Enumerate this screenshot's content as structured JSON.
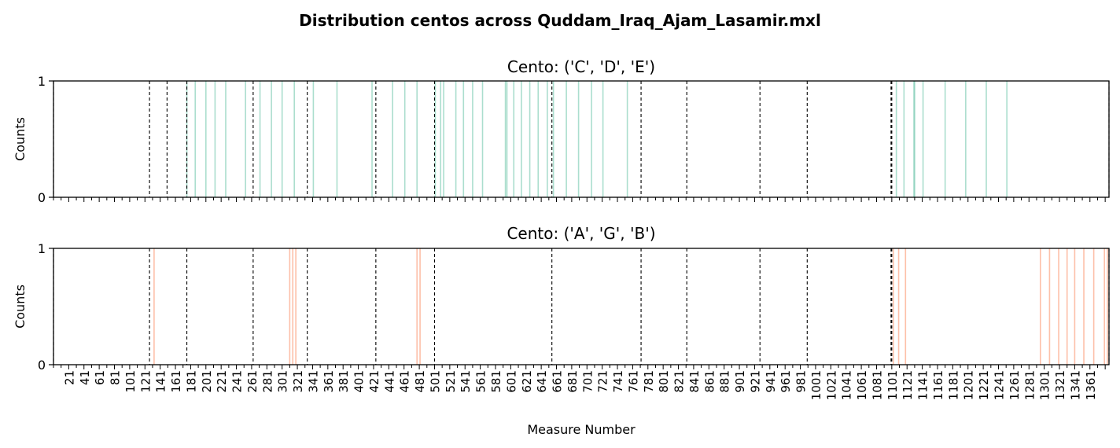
{
  "figure": {
    "title": "Distribution centos across Quddam_Iraq_Ajam_Lasamir.mxl",
    "xlabel": "Measure Number"
  },
  "chart_data": [
    {
      "type": "bar",
      "title": "Cento: ('C', 'D', 'E')",
      "ylabel": "Counts",
      "xlim": [
        1,
        1386
      ],
      "ylim": [
        0,
        1
      ],
      "yticks": [
        0,
        1
      ],
      "color": "#66c2a5",
      "bar_value": 1,
      "measures_with_count": [
        176,
        187,
        201,
        213,
        227,
        253,
        272,
        287,
        301,
        317,
        342,
        373,
        419,
        446,
        462,
        478,
        502,
        509,
        513,
        529,
        539,
        551,
        564,
        594,
        596,
        605,
        615,
        626,
        637,
        649,
        657,
        674,
        690,
        707,
        722,
        754,
        1107,
        1117,
        1130,
        1131,
        1142,
        1171,
        1198,
        1225,
        1252
      ],
      "section_boundaries": [
        1,
        127,
        150,
        176,
        263,
        334,
        424,
        501,
        655,
        772,
        832,
        928,
        990,
        1100,
        1101,
        1386
      ]
    },
    {
      "type": "bar",
      "title": "Cento: ('A', 'G', 'B')",
      "ylabel": "Counts",
      "xlim": [
        1,
        1386
      ],
      "ylim": [
        0,
        1
      ],
      "yticks": [
        0,
        1
      ],
      "color": "#fc8d62",
      "bar_value": 1,
      "measures_with_count": [
        133,
        311,
        315,
        319,
        478,
        482,
        1103,
        1110,
        1119,
        1296,
        1308,
        1320,
        1331,
        1341,
        1353,
        1366,
        1380,
        1384
      ],
      "section_boundaries": [
        1,
        127,
        176,
        263,
        334,
        424,
        501,
        655,
        772,
        832,
        928,
        990,
        1100,
        1101,
        1386
      ]
    }
  ],
  "x_tick_labels": [
    "21",
    "41",
    "61",
    "81",
    "101",
    "121",
    "141",
    "161",
    "181",
    "201",
    "221",
    "241",
    "261",
    "281",
    "301",
    "321",
    "341",
    "361",
    "381",
    "401",
    "421",
    "441",
    "461",
    "481",
    "501",
    "521",
    "541",
    "561",
    "581",
    "601",
    "621",
    "641",
    "661",
    "681",
    "701",
    "721",
    "741",
    "761",
    "781",
    "801",
    "821",
    "841",
    "861",
    "881",
    "901",
    "921",
    "941",
    "961",
    "981",
    "1001",
    "1021",
    "1041",
    "1061",
    "1081",
    "1101",
    "1121",
    "1141",
    "1161",
    "1181",
    "1201",
    "1221",
    "1241",
    "1261",
    "1281",
    "1301",
    "1321",
    "1341",
    "1361"
  ]
}
